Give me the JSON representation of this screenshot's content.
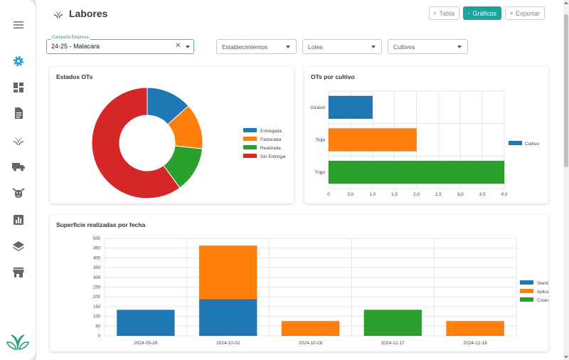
{
  "page": {
    "title": "Labores"
  },
  "toolbar": {
    "tabla_label": "Tabla",
    "graficos_label": "Gráficos",
    "exportar_label": "Exportar"
  },
  "filters": {
    "campania": {
      "legend": "Campaña Empresa",
      "value": "24-25 - Malacara"
    },
    "establecimientos": {
      "placeholder": "Establecimientos"
    },
    "lotes": {
      "placeholder": "Lotes"
    },
    "cultivos": {
      "placeholder": "Cultivos"
    }
  },
  "colors": {
    "blue": "#1f77b4",
    "orange": "#ff7f0e",
    "green": "#2ca02c",
    "red": "#d62728",
    "accent": "#1ba39c"
  },
  "chart_data": [
    {
      "id": "estados",
      "type": "pie",
      "title": "Estados OTs",
      "labels": [
        "Entregada",
        "Facturada",
        "Realizada",
        "Sin Entregar"
      ],
      "values": [
        2,
        2,
        2,
        9
      ],
      "colors": [
        "#1f77b4",
        "#ff7f0e",
        "#2ca02c",
        "#d62728"
      ],
      "legend": "right"
    },
    {
      "id": "cultivo",
      "type": "bar",
      "orientation": "horizontal",
      "title": "OTs por cultivo",
      "categories": [
        "Girasol",
        "Soja",
        "Trigo"
      ],
      "values": [
        1,
        2,
        4
      ],
      "colors": [
        "#1f77b4",
        "#ff7f0e",
        "#2ca02c"
      ],
      "xlim": [
        0,
        4
      ],
      "xticks": [
        "0",
        "0,5",
        "1,0",
        "1,5",
        "2,0",
        "2,5",
        "3,0",
        "3,5",
        "4,0"
      ],
      "legend_entries": [
        "Cultivo"
      ],
      "legend": "right"
    },
    {
      "id": "superficie",
      "type": "bar",
      "stacked": true,
      "title": "Superficie realizadas por fecha",
      "categories": [
        "2024-05-28",
        "2024-10-02",
        "2024-10-28",
        "2024-12-17",
        "2024-12-18"
      ],
      "series": [
        {
          "name": "Siembra",
          "color": "#1f77b4",
          "values": [
            133,
            187,
            0,
            0,
            0
          ]
        },
        {
          "name": "Aplicación terrestre",
          "color": "#ff7f0e",
          "values": [
            0,
            275,
            75,
            0,
            75
          ]
        },
        {
          "name": "Cosecha fina",
          "color": "#2ca02c",
          "values": [
            0,
            0,
            0,
            133,
            0
          ]
        }
      ],
      "ylim": [
        0,
        500
      ],
      "yticks": [
        "0",
        "50",
        "100",
        "150",
        "200",
        "250",
        "300",
        "350",
        "400",
        "450",
        "500"
      ],
      "legend": "right"
    }
  ]
}
